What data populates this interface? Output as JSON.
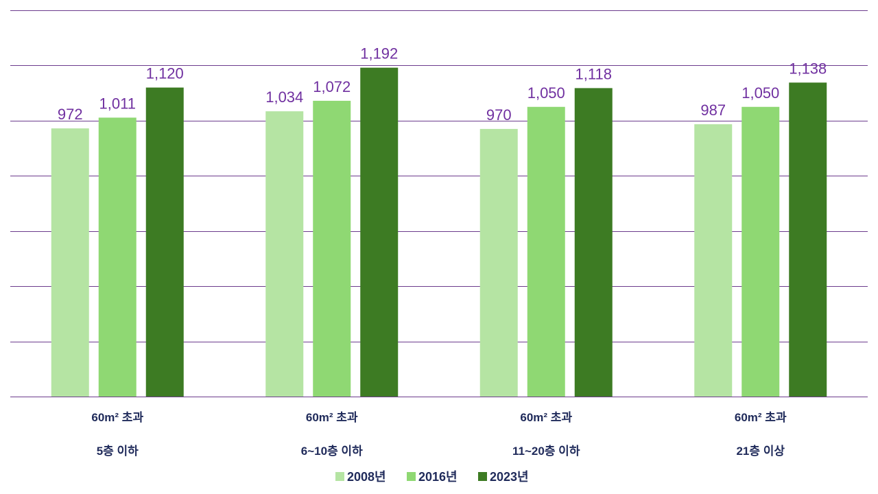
{
  "chart_data": {
    "type": "bar",
    "categories": [
      {
        "line1": "60m² 초과",
        "line2": "5층 이하"
      },
      {
        "line1": "60m² 초과",
        "line2": "6~10층 이하"
      },
      {
        "line1": "60m² 초과",
        "line2": "11~20층 이하"
      },
      {
        "line1": "60m² 초과",
        "line2": "21층 이상"
      }
    ],
    "series": [
      {
        "name": "2008년",
        "color": "#b5e4a3",
        "values": [
          972,
          1034,
          970,
          987
        ],
        "labels": [
          "972",
          "1,034",
          "970",
          "987"
        ]
      },
      {
        "name": "2016년",
        "color": "#8fd873",
        "values": [
          1011,
          1072,
          1050,
          1050
        ],
        "labels": [
          "1,011",
          "1,072",
          "1,050",
          "1,050"
        ]
      },
      {
        "name": "2023년",
        "color": "#3d7b23",
        "values": [
          1120,
          1192,
          1118,
          1138
        ],
        "labels": [
          "1,120",
          "1,192",
          "1,118",
          "1,138"
        ]
      }
    ],
    "ylim": [
      0,
      1400
    ],
    "grid": true,
    "legend_position": "bottom",
    "colors": {
      "gridline": "#6b3a8c",
      "value_label": "#7030a0",
      "category_label": "#1f2a5a"
    }
  }
}
